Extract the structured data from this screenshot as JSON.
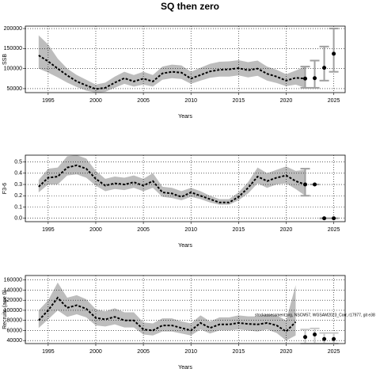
{
  "title": "SQ then zero",
  "chart_data": [
    {
      "type": "line",
      "ylabel": "SSB",
      "xlabel": "Years",
      "x": [
        1994,
        1995,
        1996,
        1997,
        1998,
        1999,
        2000,
        2001,
        2002,
        2003,
        2004,
        2005,
        2006,
        2007,
        2008,
        2009,
        2010,
        2011,
        2012,
        2013,
        2014,
        2015,
        2016,
        2017,
        2018,
        2019,
        2020,
        2021,
        2022
      ],
      "values": [
        133000,
        118000,
        100000,
        83000,
        68000,
        58000,
        49000,
        52000,
        65000,
        76000,
        68000,
        75000,
        68000,
        88000,
        92000,
        90000,
        75000,
        84000,
        93000,
        97000,
        98000,
        101000,
        96000,
        100000,
        87000,
        80000,
        70000,
        77000,
        75000
      ],
      "upper": [
        183000,
        160000,
        125000,
        100000,
        84000,
        72000,
        60000,
        65000,
        80000,
        92000,
        84000,
        92000,
        84000,
        105000,
        110000,
        108000,
        92000,
        102000,
        112000,
        117000,
        118000,
        121000,
        116000,
        120000,
        105000,
        97000,
        86000,
        95000,
        105000
      ],
      "lower": [
        100000,
        90000,
        78000,
        65000,
        54000,
        45000,
        40000,
        42000,
        52000,
        62000,
        55000,
        60000,
        55000,
        72000,
        76000,
        74000,
        62000,
        70000,
        77000,
        80000,
        80000,
        83000,
        78000,
        82000,
        70000,
        64000,
        56000,
        60000,
        52000
      ],
      "forecast_x": [
        2022,
        2023,
        2024,
        2025
      ],
      "forecast_values": [
        75000,
        76000,
        102000,
        137000
      ],
      "forecast_lower": [
        52000,
        52000,
        70000,
        92000
      ],
      "forecast_upper": [
        105000,
        120000,
        155000,
        200000
      ],
      "color": "#000000",
      "band_color": "#bdbdbd",
      "errorbar_color": "#a0a0a0",
      "xlim": [
        1992.6,
        2026.2
      ],
      "xticks": [
        1995,
        2000,
        2005,
        2010,
        2015,
        2020,
        2025
      ],
      "ylim": [
        40000,
        206000
      ],
      "yticks": [
        50000,
        100000,
        150000,
        200000
      ],
      "grid": true
    },
    {
      "type": "line",
      "ylabel": "F3-6",
      "xlabel": "Years",
      "x": [
        1994,
        1995,
        1996,
        1997,
        1998,
        1999,
        2000,
        2001,
        2002,
        2003,
        2004,
        2005,
        2006,
        2007,
        2008,
        2009,
        2010,
        2011,
        2012,
        2013,
        2014,
        2015,
        2016,
        2017,
        2018,
        2019,
        2020,
        2021,
        2022
      ],
      "values": [
        0.28,
        0.36,
        0.37,
        0.45,
        0.47,
        0.44,
        0.35,
        0.29,
        0.31,
        0.3,
        0.32,
        0.29,
        0.33,
        0.23,
        0.22,
        0.19,
        0.23,
        0.2,
        0.17,
        0.14,
        0.14,
        0.19,
        0.27,
        0.37,
        0.33,
        0.36,
        0.38,
        0.33,
        0.3
      ],
      "upper": [
        0.34,
        0.44,
        0.45,
        0.55,
        0.56,
        0.53,
        0.42,
        0.35,
        0.37,
        0.36,
        0.38,
        0.35,
        0.4,
        0.28,
        0.27,
        0.24,
        0.27,
        0.24,
        0.2,
        0.17,
        0.17,
        0.23,
        0.32,
        0.45,
        0.4,
        0.43,
        0.46,
        0.42,
        0.43
      ],
      "lower": [
        0.23,
        0.3,
        0.3,
        0.38,
        0.39,
        0.36,
        0.29,
        0.24,
        0.26,
        0.25,
        0.27,
        0.24,
        0.27,
        0.19,
        0.18,
        0.16,
        0.19,
        0.17,
        0.14,
        0.12,
        0.12,
        0.16,
        0.22,
        0.31,
        0.27,
        0.3,
        0.31,
        0.26,
        0.2
      ],
      "forecast_x": [
        2022,
        2023,
        2024,
        2025
      ],
      "forecast_values": [
        0.3,
        0.3,
        0.0,
        0.0
      ],
      "forecast_lower": [
        0.2,
        0.3,
        0.0,
        0.0
      ],
      "forecast_upper": [
        0.44,
        0.3,
        0.0,
        0.0
      ],
      "color": "#000000",
      "band_color": "#bdbdbd",
      "errorbar_color": "#a0a0a0",
      "xlim": [
        1992.6,
        2026.2
      ],
      "xticks": [
        1995,
        2000,
        2005,
        2010,
        2015,
        2020,
        2025
      ],
      "ylim": [
        -0.03,
        0.56
      ],
      "yticks": [
        {
          "value": 0,
          "label": "0.0"
        },
        0.1,
        0.2,
        0.3,
        0.4,
        0.5
      ],
      "grid": true
    },
    {
      "type": "line",
      "ylabel": "Recruits (age 0)",
      "xlabel": "Years",
      "annotation": "stockassessment.org, NSCM57, WGSAM2023_Corr, r17977, git e38",
      "x": [
        1994,
        1995,
        1996,
        1997,
        1998,
        1999,
        2000,
        2001,
        2002,
        2003,
        2004,
        2005,
        2006,
        2007,
        2008,
        2009,
        2010,
        2011,
        2012,
        2013,
        2014,
        2015,
        2016,
        2017,
        2018,
        2019,
        2020,
        2021
      ],
      "values": [
        80000,
        100000,
        125000,
        105000,
        110000,
        103000,
        85000,
        82000,
        87000,
        80000,
        80000,
        62000,
        60000,
        70000,
        70000,
        65000,
        60000,
        75000,
        65000,
        72000,
        72000,
        75000,
        73000,
        72000,
        75000,
        70000,
        58000,
        77000
      ],
      "upper": [
        100000,
        120000,
        155000,
        125000,
        130000,
        122000,
        102000,
        98000,
        104000,
        96000,
        96000,
        76000,
        74000,
        84000,
        84000,
        78000,
        74000,
        90000,
        78000,
        86000,
        86000,
        90000,
        88000,
        88000,
        92000,
        90000,
        80000,
        150000
      ],
      "lower": [
        65000,
        82000,
        100000,
        87000,
        92000,
        86000,
        70000,
        68000,
        72000,
        66000,
        66000,
        52000,
        50000,
        58000,
        58000,
        54000,
        50000,
        62000,
        54000,
        60000,
        60000,
        62000,
        60000,
        58000,
        62000,
        55000,
        40000,
        50000
      ],
      "forecast_x": [
        2022,
        2023,
        2024,
        2025
      ],
      "forecast_values": [
        47000,
        52000,
        43000,
        43000
      ],
      "forecast_lower": [
        34000,
        34000,
        34000,
        34000
      ],
      "forecast_upper": [
        62000,
        64000,
        55000,
        55000
      ],
      "color": "#000000",
      "band_color": "#bdbdbd",
      "errorbar_color": "#c8c8c8",
      "xlim": [
        1992.6,
        2026.2
      ],
      "xticks": [
        1995,
        2000,
        2005,
        2010,
        2015,
        2020,
        2025
      ],
      "ylim": [
        34000,
        169000
      ],
      "yticks": [
        40000,
        60000,
        80000,
        100000,
        120000,
        140000,
        160000
      ],
      "grid": true
    }
  ]
}
